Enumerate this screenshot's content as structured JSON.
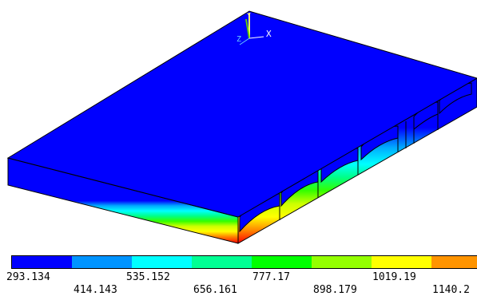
{
  "viewport": {
    "axis_labels": {
      "x": "X",
      "y": "Y",
      "z": "Z"
    },
    "colors": {
      "top_face": "#0000ff",
      "outline": "#000000",
      "contour_bands": [
        "#0000ff",
        "#0094ff",
        "#00ffff",
        "#00ff94",
        "#00ff00",
        "#94ff00",
        "#ffff00",
        "#ff9400",
        "#ff0000"
      ]
    }
  },
  "legend": {
    "colors": [
      "#0000ff",
      "#0094ff",
      "#00ffff",
      "#00ff94",
      "#00ff00",
      "#94ff00",
      "#ffff00",
      "#ff9400"
    ],
    "labels_row1": [
      "293.134",
      "535.152",
      "777.17",
      "1019.19"
    ],
    "labels_row2": [
      "414.143",
      "656.161",
      "898.179",
      "1140.2"
    ]
  }
}
